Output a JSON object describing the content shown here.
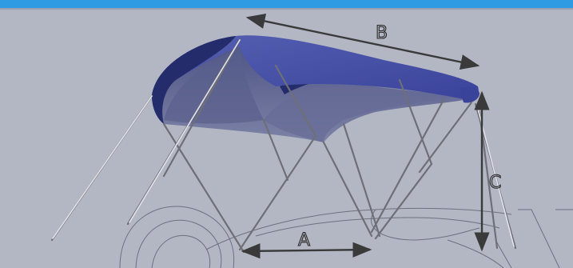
{
  "colors": {
    "background": "#b3b6c3",
    "header_bar": "#2f9be3",
    "canopy_top": "#4a55a8",
    "canopy_dark": "#252c6b",
    "canopy_underside": "#6a6f95",
    "frame": "#6f6f78",
    "dimension_arrows": "#3a3a3a"
  },
  "dimensions": {
    "a_label": "A",
    "b_label": "B",
    "c_label": "C"
  },
  "icons": {
    "bimini_top": "boat-bimini-canopy",
    "boat_outline": "boat-hull-sketch"
  }
}
